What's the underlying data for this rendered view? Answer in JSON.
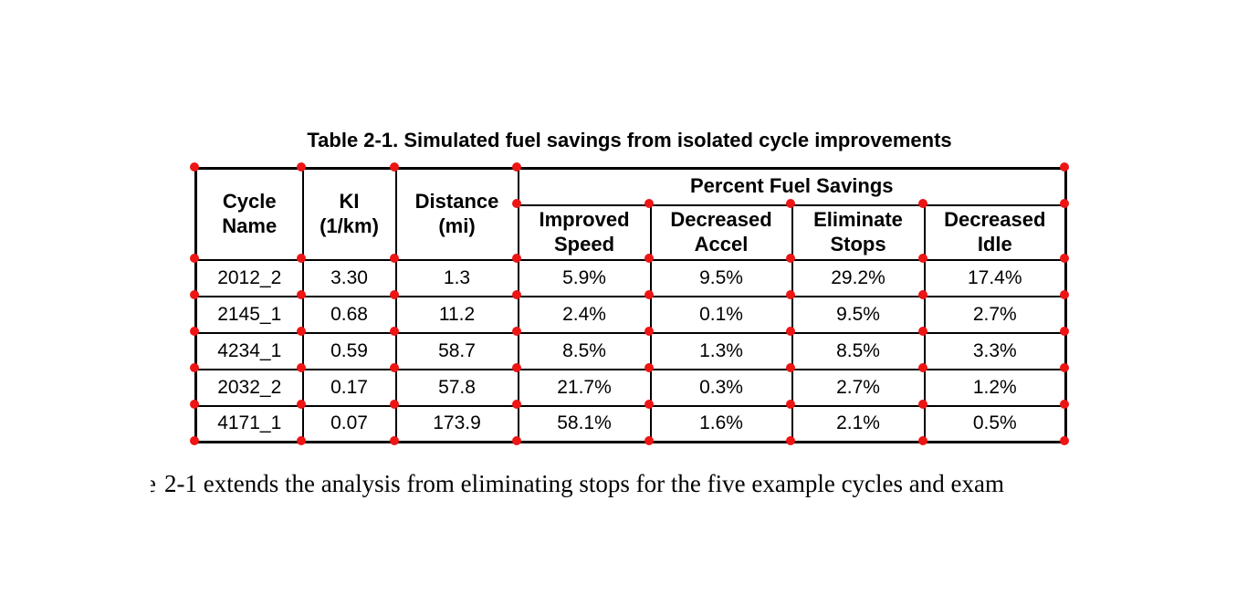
{
  "title": "Table 2-1. Simulated fuel savings from isolated cycle improvements",
  "caption": {
    "fragment": "e",
    "text": "2-1 extends the analysis from eliminating stops for the five example cycles and exam"
  },
  "table": {
    "group_header": "Percent Fuel Savings",
    "col_headers": [
      [
        "Cycle",
        "Name"
      ],
      [
        "KI",
        "(1/km)"
      ],
      [
        "Distance",
        "(mi)"
      ]
    ],
    "sub_headers": [
      [
        "Improved",
        "Speed"
      ],
      [
        "Decreased",
        "Accel"
      ],
      [
        "Eliminate",
        "Stops"
      ],
      [
        "Decreased",
        "Idle"
      ]
    ],
    "rows": [
      [
        "2012_2",
        "3.30",
        "1.3",
        "5.9%",
        "9.5%",
        "29.2%",
        "17.4%"
      ],
      [
        "2145_1",
        "0.68",
        "11.2",
        "2.4%",
        "0.1%",
        "9.5%",
        "2.7%"
      ],
      [
        "4234_1",
        "0.59",
        "58.7",
        "8.5%",
        "1.3%",
        "8.5%",
        "3.3%"
      ],
      [
        "2032_2",
        "0.17",
        "57.8",
        "21.7%",
        "0.3%",
        "2.7%",
        "1.2%"
      ],
      [
        "4171_1",
        "0.07",
        "173.9",
        "58.1%",
        "1.6%",
        "2.1%",
        "0.5%"
      ]
    ]
  },
  "annotation": {
    "dot_color": "#ee1515",
    "dot_meaning": "table cell corner markers"
  }
}
